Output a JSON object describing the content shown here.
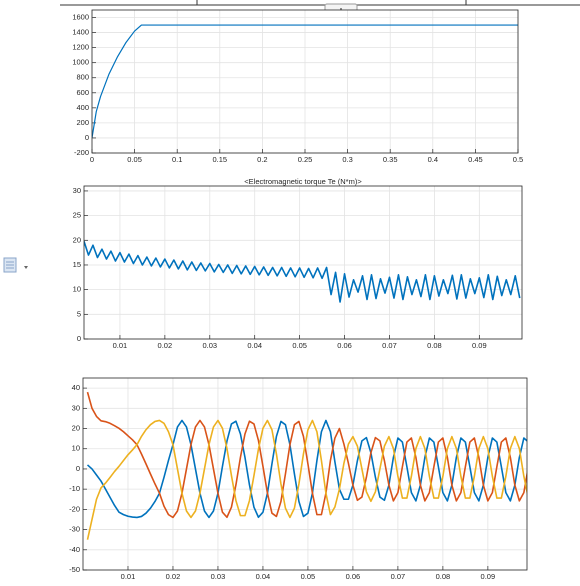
{
  "chart_data": [
    {
      "type": "line",
      "color": "#0072bd",
      "x": [
        0,
        0.005,
        0.01,
        0.02,
        0.03,
        0.04,
        0.05,
        0.058,
        0.5
      ],
      "values": [
        0,
        350,
        550,
        850,
        1080,
        1270,
        1420,
        1500,
        1500
      ],
      "xlim": [
        0,
        0.5
      ],
      "ylim": [
        -200,
        1700
      ],
      "xticks": [
        0,
        0.05,
        0.1,
        0.15,
        0.2,
        0.25,
        0.3,
        0.35,
        0.4,
        0.45,
        0.5
      ],
      "yticks": [
        -200,
        0,
        200,
        400,
        600,
        800,
        1000,
        1200,
        1400,
        1600
      ],
      "grid": true
    },
    {
      "type": "line",
      "title": "<Electromagnetic torque Te (N*m)>",
      "color": "#0072bd",
      "x": [
        0.002,
        0.003,
        0.004,
        0.005,
        0.006,
        0.007,
        0.008,
        0.009,
        0.01,
        0.011,
        0.012,
        0.013,
        0.014,
        0.015,
        0.016,
        0.017,
        0.018,
        0.019,
        0.02,
        0.021,
        0.022,
        0.023,
        0.024,
        0.025,
        0.026,
        0.027,
        0.028,
        0.029,
        0.03,
        0.031,
        0.032,
        0.033,
        0.034,
        0.035,
        0.036,
        0.037,
        0.038,
        0.039,
        0.04,
        0.041,
        0.042,
        0.043,
        0.044,
        0.045,
        0.046,
        0.047,
        0.048,
        0.049,
        0.05,
        0.051,
        0.052,
        0.053,
        0.054,
        0.055,
        0.056,
        0.057,
        0.058,
        0.059,
        0.06,
        0.061,
        0.062,
        0.063,
        0.064,
        0.065,
        0.066,
        0.067,
        0.068,
        0.069,
        0.07,
        0.071,
        0.072,
        0.073,
        0.074,
        0.075,
        0.076,
        0.077,
        0.078,
        0.079,
        0.08,
        0.081,
        0.082,
        0.083,
        0.084,
        0.085,
        0.086,
        0.087,
        0.088,
        0.089,
        0.09,
        0.091,
        0.092,
        0.093,
        0.094,
        0.095,
        0.096,
        0.097,
        0.098,
        0.099
      ],
      "values": [
        19.8,
        17.0,
        19.0,
        16.5,
        18.2,
        16.2,
        17.8,
        15.8,
        17.5,
        15.6,
        17.2,
        15.3,
        16.9,
        15.0,
        16.6,
        14.8,
        16.4,
        14.6,
        16.2,
        14.4,
        16.0,
        14.2,
        15.8,
        14.0,
        15.6,
        13.9,
        15.4,
        13.8,
        15.3,
        13.6,
        15.1,
        13.5,
        15.0,
        13.3,
        14.9,
        13.2,
        14.8,
        13.1,
        14.7,
        13.0,
        14.6,
        12.9,
        14.5,
        12.8,
        14.5,
        12.7,
        14.4,
        12.6,
        14.4,
        12.5,
        14.3,
        12.4,
        14.4,
        12.3,
        14.5,
        9.0,
        13.5,
        7.5,
        13.2,
        8.5,
        12.0,
        9.5,
        12.8,
        8.0,
        13.0,
        8.2,
        12.2,
        9.3,
        12.5,
        8.3,
        13.0,
        8.0,
        12.6,
        9.0,
        12.0,
        8.6,
        13.0,
        8.0,
        12.8,
        8.7,
        12.0,
        9.2,
        12.9,
        8.1,
        13.0,
        8.3,
        12.2,
        9.2,
        12.4,
        8.4,
        13.0,
        8.0,
        12.7,
        8.8,
        12.0,
        9.0,
        12.8,
        8.3
      ],
      "xlim": [
        0.002,
        0.0995
      ],
      "ylim": [
        0,
        31
      ],
      "xticks": [
        0.01,
        0.02,
        0.03,
        0.04,
        0.05,
        0.06,
        0.07,
        0.08,
        0.09
      ],
      "yticks": [
        0,
        5,
        10,
        15,
        20,
        25,
        30
      ],
      "grid": true
    },
    {
      "type": "line",
      "x": [
        0.001,
        0.002,
        0.003,
        0.004,
        0.005,
        0.006,
        0.007,
        0.008,
        0.009,
        0.01,
        0.011,
        0.012,
        0.013,
        0.014,
        0.015,
        0.016,
        0.017,
        0.018,
        0.019,
        0.02,
        0.021,
        0.022,
        0.023,
        0.024,
        0.025,
        0.026,
        0.027,
        0.028,
        0.029,
        0.03,
        0.031,
        0.032,
        0.033,
        0.034,
        0.035,
        0.036,
        0.037,
        0.038,
        0.039,
        0.04,
        0.041,
        0.042,
        0.043,
        0.044,
        0.045,
        0.046,
        0.047,
        0.048,
        0.049,
        0.05,
        0.051,
        0.052,
        0.053,
        0.054,
        0.055,
        0.056,
        0.057,
        0.058,
        0.059,
        0.06,
        0.061,
        0.062,
        0.063,
        0.064,
        0.065,
        0.066,
        0.067,
        0.068,
        0.069,
        0.07,
        0.071,
        0.072,
        0.073,
        0.074,
        0.075,
        0.076,
        0.077,
        0.078,
        0.079,
        0.08,
        0.081,
        0.082,
        0.083,
        0.084,
        0.085,
        0.086,
        0.087,
        0.088,
        0.089,
        0.09,
        0.091,
        0.092,
        0.093,
        0.094,
        0.095,
        0.096,
        0.097,
        0.098,
        0.099
      ],
      "series": [
        {
          "color": "#0072bd",
          "values": [
            2,
            0,
            -3,
            -6,
            -10,
            -14,
            -18,
            -21.4,
            -22.6,
            -23.4,
            -23.8,
            -24,
            -23.5,
            -21.9,
            -19.4,
            -16.1,
            -12,
            -4.2,
            4.2,
            12,
            20.8,
            24,
            20.8,
            12,
            0,
            -12,
            -20.8,
            -24,
            -20.8,
            -12,
            1.3,
            13.8,
            22.3,
            23.6,
            17.3,
            5.8,
            -7.8,
            -18.9,
            -23.9,
            -21.4,
            -12,
            2.5,
            16.1,
            23.5,
            21.9,
            12,
            -2.5,
            -16.1,
            -23.5,
            -21.9,
            -12,
            4.2,
            18.4,
            24,
            18.4,
            3.5,
            -10,
            -15,
            -15,
            -8,
            4.1,
            13.9,
            15.5,
            8,
            -4.1,
            -13.9,
            -15.5,
            -8,
            5.7,
            15.3,
            13.3,
            1.1,
            -11.7,
            -15.8,
            -8,
            5.7,
            15.3,
            13.3,
            1.1,
            -11.7,
            -15.8,
            -8,
            5.7,
            15.3,
            13.3,
            1.1,
            -11.7,
            -15.8,
            -8,
            5.7,
            15.3,
            13.3,
            1.1,
            -11.7,
            -15.8,
            -8,
            5.7,
            15.3,
            13.3
          ]
        },
        {
          "color": "#d95319",
          "values": [
            38,
            30,
            26,
            23.8,
            23.4,
            22.6,
            21.4,
            20.1,
            18.4,
            16.4,
            14.4,
            12,
            7.4,
            2.5,
            -2.5,
            -7.4,
            -12,
            -18.4,
            -22.6,
            -24,
            -20.8,
            -12,
            0,
            12,
            20.8,
            24,
            20.8,
            12,
            0,
            -12,
            -21.4,
            -23.9,
            -18.9,
            -7.8,
            5.8,
            17.3,
            23.6,
            22.3,
            14.1,
            1.3,
            -12,
            -21.9,
            -23.5,
            -16.1,
            -2.5,
            12,
            21.9,
            23.5,
            16.1,
            2.5,
            -12,
            -22.6,
            -22.6,
            -12,
            4.2,
            15.3,
            20,
            12.3,
            2.8,
            -8,
            -15.5,
            -13.9,
            -4.1,
            8,
            15.5,
            13.9,
            4.1,
            -8,
            -15.8,
            -11.7,
            1.1,
            13.3,
            15.3,
            5.7,
            -8,
            -15.8,
            -11.7,
            1.1,
            13.3,
            15.3,
            5.7,
            -8,
            -15.8,
            -11.7,
            1.1,
            13.3,
            15.3,
            5.7,
            -8,
            -15.8,
            -11.7,
            1.1,
            13.3,
            15.3,
            5.7,
            -8,
            -15.8,
            -11.7,
            1.1
          ]
        },
        {
          "color": "#edb120",
          "values": [
            -35,
            -25,
            -15,
            -9.4,
            -7,
            -4.2,
            -1.3,
            1.3,
            4.2,
            7,
            9.4,
            12,
            16.1,
            19.4,
            21.9,
            23.5,
            24,
            22.6,
            18.4,
            12,
            0,
            -12,
            -20.8,
            -24,
            -20.8,
            -12,
            0,
            12,
            20.8,
            24,
            20.1,
            10.1,
            -3.3,
            -15.7,
            -23.1,
            -23.1,
            -15.7,
            -3.3,
            9.8,
            20.1,
            24,
            19.4,
            7.4,
            -7.4,
            -19.4,
            -24,
            -19.4,
            -7.4,
            7.4,
            19.4,
            24,
            18.4,
            4.2,
            -12,
            -22.6,
            -18.8,
            -10,
            2.8,
            12.3,
            16,
            11.3,
            0,
            -11.3,
            -16,
            -11.3,
            0,
            11.3,
            16,
            10.1,
            -3.6,
            -14.4,
            -14.4,
            -3.6,
            10.1,
            16,
            10.1,
            -3.6,
            -14.4,
            -14.4,
            -3.6,
            10.1,
            16,
            10.1,
            -3.6,
            -14.4,
            -14.4,
            -3.6,
            10.1,
            16,
            10.1,
            -3.6,
            -14.4,
            -14.4,
            -3.6,
            10.1,
            16,
            10.1,
            -3.6,
            -14.4
          ]
        }
      ],
      "xlim": [
        0,
        0.0987
      ],
      "ylim": [
        -50,
        45
      ],
      "xticks": [
        0.01,
        0.02,
        0.03,
        0.04,
        0.05,
        0.06,
        0.07,
        0.08,
        0.09
      ],
      "yticks": [
        -50,
        -40,
        -30,
        -20,
        -10,
        0,
        10,
        20,
        30,
        40
      ],
      "grid": true
    }
  ]
}
